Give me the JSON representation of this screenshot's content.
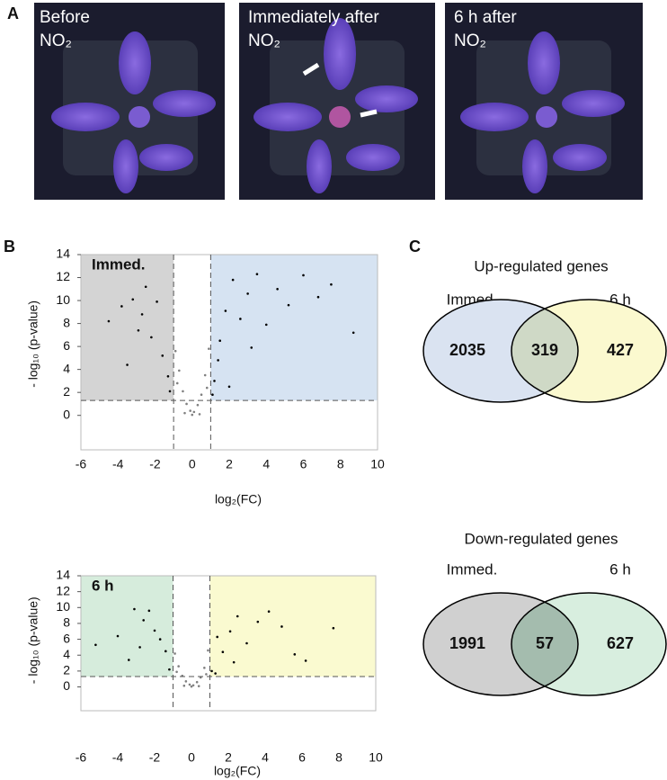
{
  "panel_a": {
    "letter": "A",
    "photos": [
      {
        "caption": "Before",
        "caption2": "NO₂"
      },
      {
        "caption": "Immediately after",
        "caption2": "NO₂"
      },
      {
        "caption": "6 h after",
        "caption2": "NO₂"
      }
    ]
  },
  "panel_b": {
    "letter": "B"
  },
  "panel_c": {
    "letter": "C"
  },
  "chart_data": [
    {
      "type": "scatter",
      "label": "Immed.",
      "xlabel": "log₂(FC)",
      "ylabel": "- log₁₀ (p-value)",
      "xlim": [
        -6,
        10
      ],
      "ylim": [
        -3,
        14
      ],
      "xticks": [
        -6,
        -4,
        -2,
        0,
        2,
        4,
        6,
        8,
        10
      ],
      "yticks": [
        0,
        2,
        4,
        6,
        8,
        10,
        12,
        14
      ],
      "thresholds": {
        "x": [
          -1,
          1
        ],
        "y": 1.3
      },
      "region_colors": [
        "#d4d4d4",
        "#d6e3f2"
      ],
      "series": [
        {
          "color": "#000000",
          "x": [
            -4.5,
            -3.8,
            -3.2,
            -2.9,
            -2.5,
            -2.2,
            -1.9,
            -1.6,
            -1.3,
            -1.2,
            -3.5,
            -2.7,
            1.2,
            1.5,
            1.8,
            2.2,
            2.6,
            3.0,
            3.5,
            4.0,
            4.6,
            5.2,
            6.0,
            6.8,
            7.5,
            8.7,
            1.4,
            2.0,
            3.2,
            1.1
          ],
          "values": [
            8.2,
            9.5,
            10.1,
            7.4,
            11.2,
            6.8,
            9.9,
            5.2,
            3.4,
            2.1,
            4.4,
            8.8,
            3.0,
            6.5,
            9.1,
            11.8,
            8.4,
            10.6,
            12.3,
            7.9,
            11.0,
            9.6,
            12.2,
            10.3,
            11.4,
            7.2,
            4.8,
            2.5,
            5.9,
            1.8
          ]
        },
        {
          "color": "#808080",
          "x": [
            -0.9,
            -0.7,
            -0.5,
            -0.3,
            -0.1,
            0.1,
            0.3,
            0.5,
            0.7,
            0.9,
            -0.4,
            0.4,
            0,
            -0.8,
            0.8
          ],
          "values": [
            5.6,
            3.9,
            2.1,
            1.0,
            0.4,
            0.3,
            0.9,
            1.8,
            3.5,
            5.8,
            0.2,
            0.1,
            0.05,
            2.8,
            2.4
          ]
        }
      ]
    },
    {
      "type": "scatter",
      "label": "6 h",
      "xlabel": "log₂(FC)",
      "ylabel": "- log₁₀ (p-value)",
      "xlim": [
        -6,
        10
      ],
      "ylim": [
        -3,
        14
      ],
      "xticks": [
        -6,
        -4,
        -2,
        0,
        2,
        4,
        6,
        8,
        10
      ],
      "yticks": [
        0,
        2,
        4,
        6,
        8,
        10,
        12,
        14
      ],
      "thresholds": {
        "x": [
          -1,
          1
        ],
        "y": 1.3
      },
      "region_colors": [
        "#d6ecdc",
        "#fafad0"
      ],
      "series": [
        {
          "color": "#000000",
          "x": [
            -5.2,
            -4.0,
            -3.1,
            -2.6,
            -2.3,
            -2.0,
            -1.7,
            -1.4,
            -1.2,
            -3.4,
            -2.8,
            1.1,
            1.4,
            1.7,
            2.1,
            2.5,
            3.0,
            3.6,
            4.2,
            4.9,
            5.6,
            6.2,
            7.7,
            1.3,
            2.3
          ],
          "values": [
            5.3,
            6.4,
            9.8,
            8.4,
            9.6,
            7.1,
            6.0,
            4.5,
            2.2,
            3.4,
            5.0,
            2.0,
            6.3,
            4.4,
            7.0,
            8.9,
            5.5,
            8.2,
            9.5,
            7.6,
            4.1,
            3.3,
            7.4,
            1.7,
            3.1
          ]
        },
        {
          "color": "#808080",
          "x": [
            -0.9,
            -0.7,
            -0.5,
            -0.3,
            -0.1,
            0.1,
            0.3,
            0.5,
            0.7,
            0.9,
            -0.4,
            0.4,
            0,
            -0.8,
            0.8
          ],
          "values": [
            4.2,
            2.6,
            1.4,
            0.7,
            0.3,
            0.2,
            0.6,
            1.2,
            2.4,
            4.6,
            0.15,
            0.1,
            0.05,
            1.9,
            1.6
          ]
        }
      ]
    }
  ],
  "venn": [
    {
      "title": "Up-regulated genes",
      "left_label": "Immed.",
      "right_label": "6 h",
      "values": [
        2035,
        319,
        427
      ],
      "colors": [
        "#dae3f1",
        "#fbf9cf",
        "#cfd9c6"
      ]
    },
    {
      "title": "Down-regulated genes",
      "left_label": "Immed.",
      "right_label": "6 h",
      "values": [
        1991,
        57,
        627
      ],
      "colors": [
        "#d0d0d0",
        "#d8eedf",
        "#a4bcae"
      ]
    }
  ]
}
